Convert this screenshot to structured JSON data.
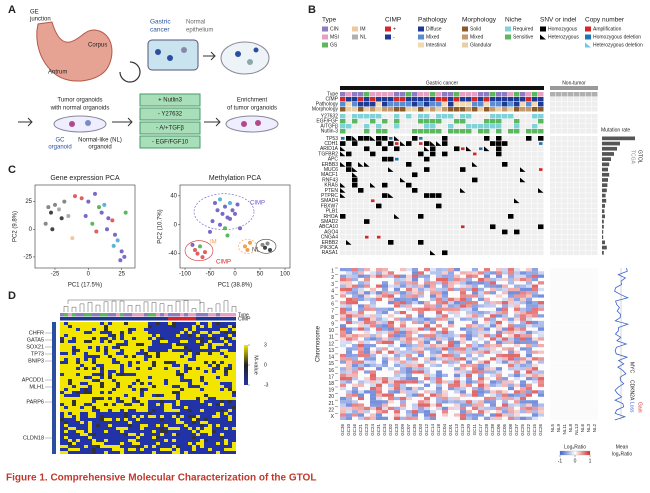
{
  "panel_a": {
    "label": "A",
    "ge_junction": [
      "GE",
      "junction"
    ],
    "corpus": "Corpus",
    "antrum": "Antrum",
    "gastric_cancer": [
      "Gastric",
      "cancer"
    ],
    "normal_epithelium": [
      "Normal",
      "epithelium"
    ],
    "tumor_organoids": [
      "Tumor organoids",
      "with normal organoids"
    ],
    "gc_organoid": [
      "GC",
      "organoid"
    ],
    "nl_organoid": [
      "Normal-like (NL)",
      "organoid"
    ],
    "conditions": [
      "+ Nutlin3",
      "- Y27632",
      "- A/+TGFβ",
      "- EGF/FGF10"
    ],
    "enrichment": [
      "Enrichment",
      "of tumor organoids"
    ]
  },
  "panel_b": {
    "label": "B",
    "legend": [
      {
        "title": "Type",
        "items": [
          {
            "name": "CIN",
            "color": "#8e7cc3"
          },
          {
            "name": "MSI",
            "color": "#e6a0c4"
          },
          {
            "name": "GS",
            "color": "#5cb85c"
          },
          {
            "name": "IM",
            "color": "#f0c8a0"
          },
          {
            "name": "NL",
            "color": "#b0b0b0"
          }
        ]
      },
      {
        "title": "CIMP",
        "items": [
          {
            "name": "+",
            "color": "#d62728"
          },
          {
            "name": "-",
            "color": "#1f3a93"
          }
        ]
      },
      {
        "title": "Pathology",
        "items": [
          {
            "name": "Diffuse",
            "color": "#1f3a93"
          },
          {
            "name": "Mixed",
            "color": "#5b8bd0"
          },
          {
            "name": "Intestinal",
            "color": "#f3d9b1"
          }
        ]
      },
      {
        "title": "Morphology",
        "items": [
          {
            "name": "Solid",
            "color": "#8b5a2b"
          },
          {
            "name": "Mixed",
            "color": "#c49a6c"
          },
          {
            "name": "Glandular",
            "color": "#e8cfa8"
          }
        ]
      },
      {
        "title": "Niche",
        "items": [
          {
            "name": "Required",
            "color": "#7fd3d6"
          },
          {
            "name": "Sensitive",
            "color": "#5cb85c"
          }
        ]
      },
      {
        "title": "SNV or indel",
        "items": [
          {
            "name": "Homozygous",
            "color": "#000000",
            "shape": "square"
          },
          {
            "name": "Heterozygous",
            "color": "#000000",
            "shape": "triangle"
          }
        ]
      },
      {
        "title": "Copy number",
        "items": [
          {
            "name": "Amplification",
            "color": "#d62728",
            "shape": "square"
          },
          {
            "name": "Homozygous deletion",
            "color": "#1f77b4",
            "shape": "square"
          },
          {
            "name": "Heterozygous deletion",
            "color": "#6ec6e8",
            "shape": "triangle"
          }
        ]
      }
    ],
    "groups": [
      "Gastric cancer",
      "Non-tumor"
    ],
    "annotation_rows": [
      "Type",
      "CIMP",
      "Pathology",
      "Morphology"
    ],
    "niche_rows": [
      "Y27632",
      "EGF/FGF",
      "A/TGFβ",
      "Nutlin-3"
    ],
    "genes": [
      "TP53",
      "CDH1",
      "ARID1A",
      "TGFBR2",
      "APC",
      "ERBB3",
      "MUC6",
      "MACF1",
      "RNF43",
      "KRAS",
      "PTEN",
      "PTPRC",
      "SMAD4",
      "FBXW7",
      "PLB1",
      "RHOA",
      "SMAD2",
      "ABCA10",
      "AGO4",
      "CNGA4",
      "ERBB2",
      "PIK3CA",
      "RASA1"
    ],
    "mutation_rate": {
      "label": "Mutation rate",
      "xlim": [
        0,
        0.6
      ],
      "color": "#555555",
      "values": [
        0.55,
        0.3,
        0.25,
        0.2,
        0.15,
        0.12,
        0.1,
        0.12,
        0.1,
        0.09,
        0.08,
        0.06,
        0.07,
        0.05,
        0.04,
        0.05,
        0.03,
        0.03,
        0.02,
        0.02,
        0.05,
        0.08,
        0.03
      ]
    },
    "cohorts": [
      "GTOL",
      "TCGA"
    ],
    "tumor_columns": [
      "GC36",
      "GC10",
      "GC16",
      "GC21",
      "GC23",
      "GC24",
      "GC31",
      "GC34",
      "GC02",
      "GC33",
      "GC09",
      "GC07",
      "GC35",
      "GC03",
      "GC12",
      "GC14",
      "GC18",
      "GC04",
      "GC01",
      "GC13",
      "GC19",
      "GC20",
      "GC11",
      "GC17",
      "GC28",
      "GC38",
      "GC06",
      "GC05",
      "GC08",
      "GC37",
      "GC25",
      "GC22",
      "GC15",
      "GC26"
    ],
    "normal_columns": [
      "NL5",
      "NL9",
      "NL11",
      "NL8",
      "NL13",
      "NL6",
      "NL3",
      "NL2"
    ],
    "chromosome_label": "Chromosome",
    "chromosomes": [
      "1",
      "2",
      "3",
      "4",
      "5",
      "6",
      "7",
      "8",
      "9",
      "10",
      "11",
      "12",
      "13",
      "14",
      "15",
      "16",
      "17",
      "18",
      "19",
      "20",
      "21",
      "22",
      "X"
    ],
    "log_ratio": {
      "label": "Log₂Ratio",
      "lim": [
        -1,
        1
      ],
      "ticks": [
        -1,
        0,
        1
      ]
    },
    "mean_log_ratio": [
      "Mean",
      "log₂Ratio"
    ],
    "right_genes": [
      "MYC",
      "CDKN2A"
    ],
    "gain": "Gain",
    "loss": "Loss"
  },
  "panel_c": {
    "label": "C",
    "plots": [
      {
        "type": "scatter",
        "title": "Gene expression PCA",
        "xlabel": "PC1 (17.5%)",
        "ylabel": "PC2 (9.8%)",
        "xlim": [
          -40,
          35
        ],
        "ylim": [
          -35,
          40
        ],
        "xticks": [
          -25,
          0,
          25
        ],
        "yticks": [
          -25,
          0,
          25
        ],
        "x": [
          -30,
          -28,
          -25,
          -22,
          -20,
          -18,
          -15,
          -32,
          -27,
          -10,
          -5,
          0,
          5,
          8,
          10,
          12,
          15,
          18,
          20,
          22,
          25,
          27,
          3,
          -2,
          6,
          14,
          19,
          24,
          28,
          -12
        ],
        "y": [
          20,
          15,
          22,
          18,
          10,
          25,
          12,
          5,
          0,
          30,
          28,
          25,
          32,
          20,
          15,
          22,
          10,
          8,
          -5,
          -10,
          -20,
          -25,
          5,
          12,
          -2,
          0,
          -15,
          -28,
          15,
          -8
        ],
        "colors": [
          "#888888",
          "#444444",
          "#888888",
          "#aaaaaa",
          "#444444",
          "#888888",
          "#aaaaaa",
          "#888888",
          "#444444",
          "#e06060",
          "#e06060",
          "#7b68c8",
          "#7b68c8",
          "#5cb85c",
          "#7b68c8",
          "#5ab4d6",
          "#7b68c8",
          "#e06060",
          "#7b68c8",
          "#5ab4d6",
          "#7b68c8",
          "#7b68c8",
          "#5cb85c",
          "#7b68c8",
          "#e06060",
          "#7b68c8",
          "#5ab4d6",
          "#7b68c8",
          "#5cb85c",
          "#f0c8a0"
        ],
        "annotations": []
      },
      {
        "type": "scatter",
        "title": "Methylation PCA",
        "xlabel": "PC1 (38.8%)",
        "ylabel": "PC2 (10.7%)",
        "xlim": [
          -110,
          110
        ],
        "ylim": [
          -60,
          55
        ],
        "xticks": [
          -100,
          -50,
          0,
          50,
          100
        ],
        "yticks": [
          -40,
          0,
          40
        ],
        "x": [
          -40,
          -35,
          -30,
          -25,
          -20,
          -15,
          -10,
          -5,
          0,
          5,
          -45,
          -30,
          -20,
          -10,
          -80,
          -75,
          -70,
          -65,
          -85,
          -60,
          20,
          25,
          30,
          55,
          60,
          65,
          70,
          -50,
          -15,
          10
        ],
        "y": [
          30,
          20,
          35,
          15,
          25,
          10,
          30,
          20,
          15,
          28,
          5,
          0,
          -5,
          8,
          -35,
          -40,
          -30,
          -45,
          -28,
          -38,
          -30,
          -35,
          -25,
          -28,
          -32,
          -26,
          -35,
          -10,
          -15,
          -5
        ],
        "colors": [
          "#7b68c8",
          "#7b68c8",
          "#5ab4d6",
          "#7b68c8",
          "#7b68c8",
          "#7b68c8",
          "#5ab4d6",
          "#7b68c8",
          "#7b68c8",
          "#7b68c8",
          "#7b68c8",
          "#7b68c8",
          "#5cb85c",
          "#7b68c8",
          "#e06060",
          "#e06060",
          "#5cb85c",
          "#e06060",
          "#7b68c8",
          "#e06060",
          "#f0a050",
          "#f0a050",
          "#f0a050",
          "#888888",
          "#444444",
          "#888888",
          "#444444",
          "#7b68c8",
          "#5cb85c",
          "#7b68c8"
        ],
        "annotations": [
          {
            "text": "CIMP",
            "color": "#6a5acd"
          },
          {
            "text": "CIMP",
            "color": "#d62728"
          },
          {
            "text": "IM",
            "color": "#f0a050"
          },
          {
            "text": "NL",
            "color": "#444444"
          }
        ]
      }
    ]
  },
  "panel_d": {
    "label": "D",
    "genes": [
      "CHFR",
      "GATA5",
      "SOX21",
      "TP73",
      "BNIP3",
      "APCDD1",
      "MLH1",
      "PARP6",
      "CLDN18"
    ],
    "type_label": "Type",
    "cimp_label": "CIMP",
    "m_value": {
      "label": "M-value",
      "lim": [
        -3,
        3
      ],
      "ticks": [
        3,
        0,
        -3
      ]
    }
  },
  "caption": "Figure 1. Comprehensive Molecular Characterization of the GTOL"
}
